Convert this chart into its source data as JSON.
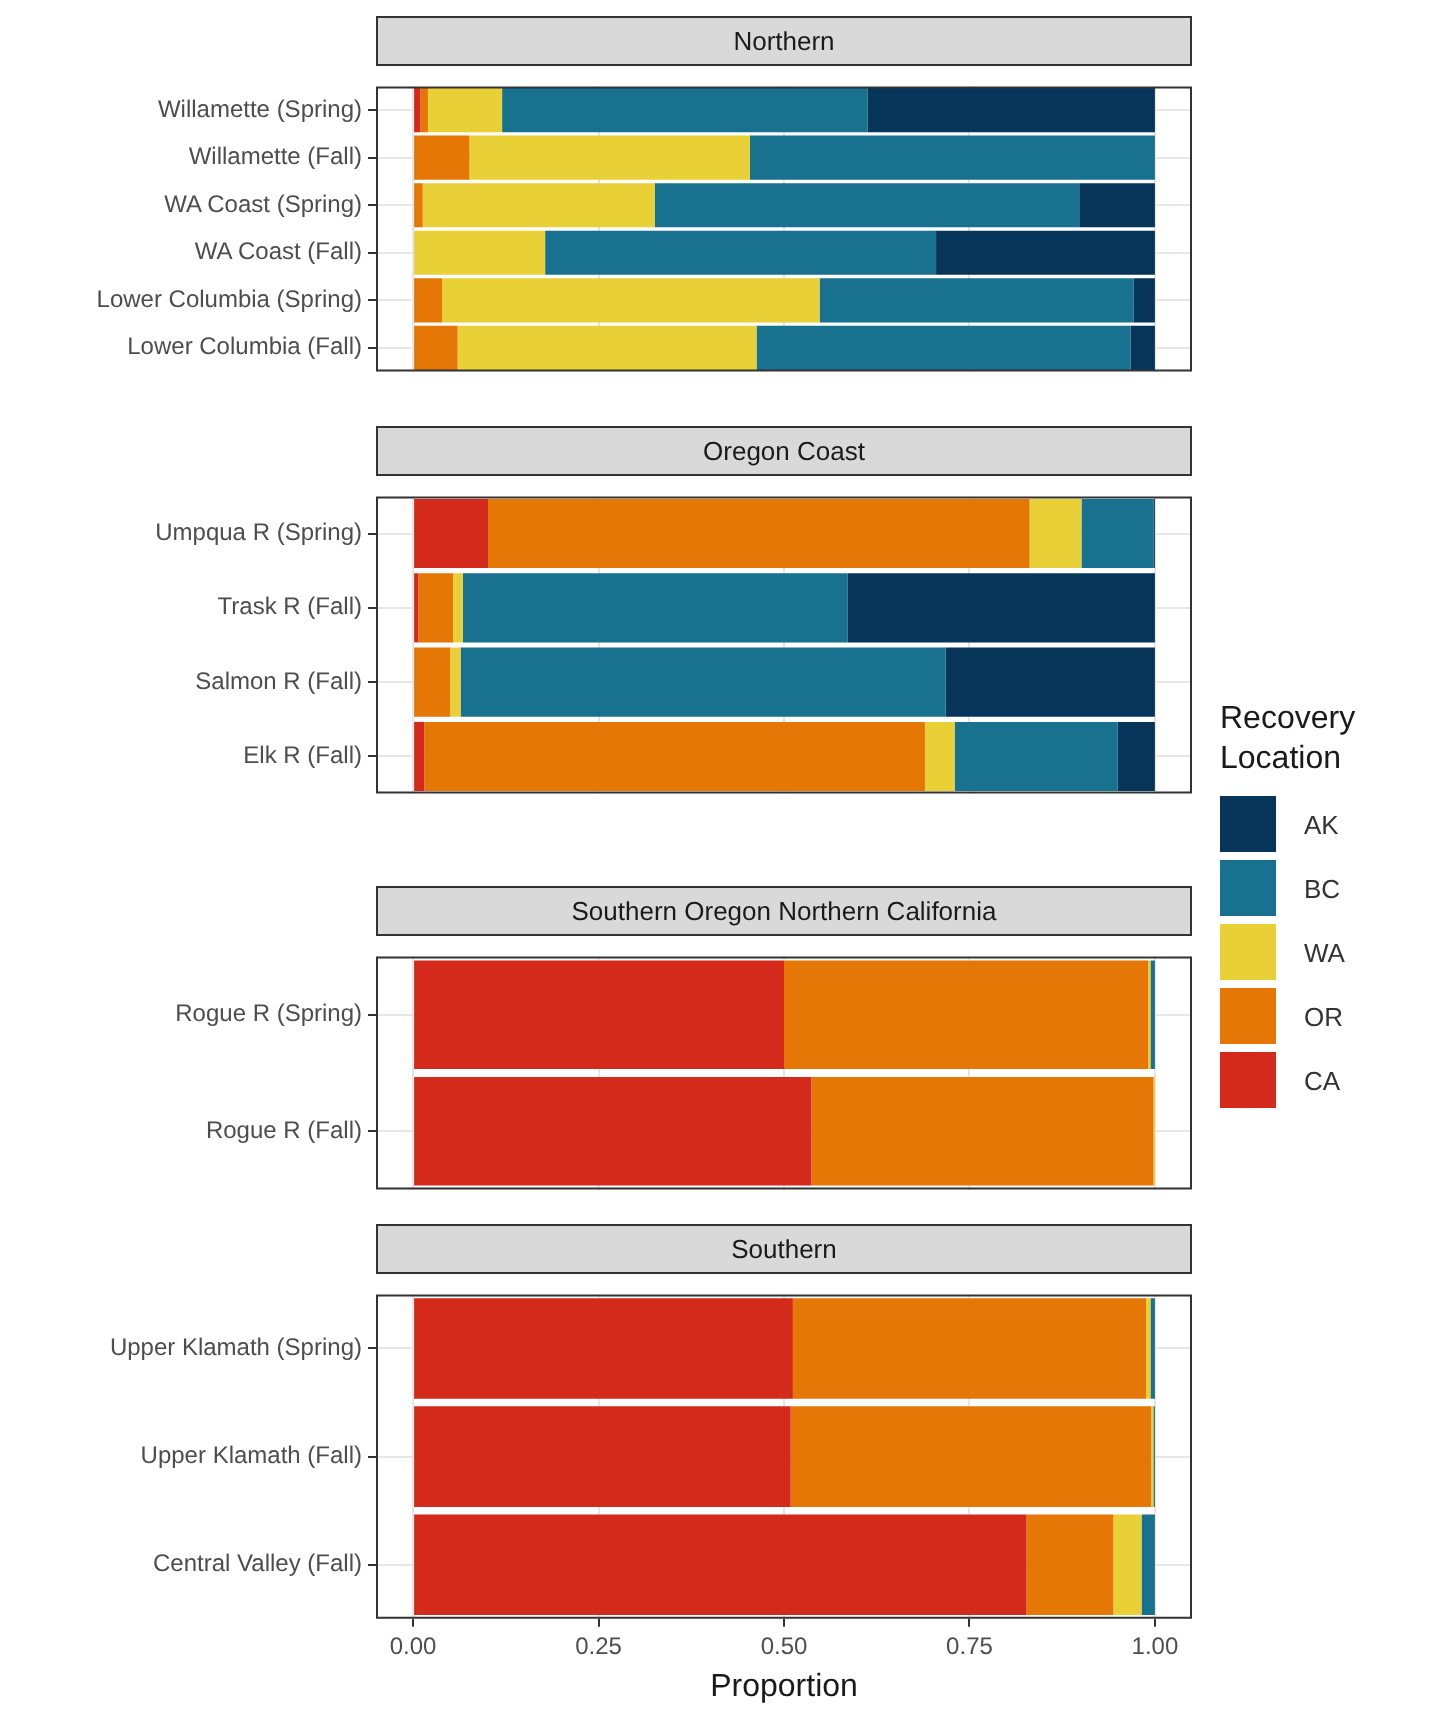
{
  "chart_data": [
    {
      "type": "bar",
      "orientation": "horizontal",
      "stacked": true,
      "title": "Northern",
      "legend": "right",
      "legend_title": "Recovery Location",
      "grid": true,
      "tick_labels": "y",
      "xlim": [
        -0.05,
        1.05
      ],
      "xticks": [
        0,
        0.25,
        0.5,
        0.75,
        1
      ],
      "categories": [
        "Willamette (Spring)",
        "Willamette (Fall)",
        "WA Coast (Spring)",
        "WA Coast (Fall)",
        "Lower Columbia (Spring)",
        "Lower Columbia (Fall)"
      ],
      "series": [
        {
          "name": "CA",
          "color": "#d42a1c",
          "values": [
            0.01,
            0,
            0,
            0,
            0,
            0
          ]
        },
        {
          "name": "OR",
          "color": "#e57706",
          "values": [
            0.01,
            0.076,
            0.013,
            0,
            0.039,
            0.06
          ]
        },
        {
          "name": "WA",
          "color": "#e8d036",
          "values": [
            0.1,
            0.378,
            0.313,
            0.178,
            0.509,
            0.403
          ]
        },
        {
          "name": "BC",
          "color": "#17718f",
          "values": [
            0.493,
            0.546,
            0.572,
            0.527,
            0.423,
            0.504
          ]
        },
        {
          "name": "AK",
          "color": "#073559",
          "values": [
            0.387,
            0,
            0.102,
            0.295,
            0.029,
            0.033
          ]
        }
      ]
    },
    {
      "type": "bar",
      "orientation": "horizontal",
      "stacked": true,
      "title": "Oregon Coast",
      "grid": true,
      "tick_labels": "y",
      "xlim": [
        -0.05,
        1.05
      ],
      "xticks": [
        0,
        0.25,
        0.5,
        0.75,
        1
      ],
      "categories": [
        "Umpqua R (Spring)",
        "Trask R (Fall)",
        "Salmon R (Fall)",
        "Elk R (Fall)"
      ],
      "series": [
        {
          "color": "#d42a1c",
          "values": [
            0.101,
            0.007,
            0,
            0.015
          ]
        },
        {
          "color": "#e57706",
          "values": [
            0.73,
            0.047,
            0.05,
            0.675
          ]
        },
        {
          "color": "#e8d036",
          "values": [
            0.07,
            0.013,
            0.014,
            0.04
          ]
        },
        {
          "color": "#17718f",
          "values": [
            0.097,
            0.519,
            0.654,
            0.22
          ]
        },
        {
          "color": "#073559",
          "values": [
            0.002,
            0.414,
            0.282,
            0.05
          ]
        }
      ]
    },
    {
      "type": "bar",
      "orientation": "horizontal",
      "stacked": true,
      "title": "Southern Oregon Northern California",
      "grid": true,
      "tick_labels": "y",
      "xlim": [
        -0.05,
        1.05
      ],
      "xticks": [
        0,
        0.25,
        0.5,
        0.75,
        1
      ],
      "categories": [
        "Rogue R (Spring)",
        "Rogue R (Fall)"
      ],
      "series": [
        {
          "color": "#d42a1c",
          "values": [
            0.5,
            0.537
          ]
        },
        {
          "color": "#e57706",
          "values": [
            0.491,
            0.461
          ]
        },
        {
          "color": "#e8d036",
          "values": [
            0.003,
            0.002
          ]
        },
        {
          "color": "#17718f",
          "values": [
            0.006,
            0
          ]
        },
        {
          "color": "#073559",
          "values": [
            0,
            0
          ]
        }
      ]
    },
    {
      "type": "bar",
      "orientation": "horizontal",
      "stacked": true,
      "title": "Southern",
      "xlabel": "Proportion",
      "grid": true,
      "xlim": [
        -0.05,
        1.05
      ],
      "xticks": [
        {
          "value": 0,
          "label": "0.00"
        },
        {
          "value": 0.25,
          "label": "0.25"
        },
        {
          "value": 0.5,
          "label": "0.50"
        },
        {
          "value": 0.75,
          "label": "0.75"
        },
        {
          "value": 1,
          "label": "1.00"
        }
      ],
      "categories": [
        "Upper Klamath (Spring)",
        "Upper Klamath (Fall)",
        "Central Valley (Fall)"
      ],
      "series": [
        {
          "color": "#d42a1c",
          "values": [
            0.512,
            0.509,
            0.827
          ]
        },
        {
          "color": "#e57706",
          "values": [
            0.476,
            0.486,
            0.117
          ]
        },
        {
          "color": "#e8d036",
          "values": [
            0.006,
            0.003,
            0.038
          ]
        },
        {
          "color": "#17718f",
          "values": [
            0.006,
            0.002,
            0.018
          ]
        },
        {
          "color": "#073559",
          "values": [
            0,
            0,
            0
          ]
        }
      ]
    }
  ]
}
